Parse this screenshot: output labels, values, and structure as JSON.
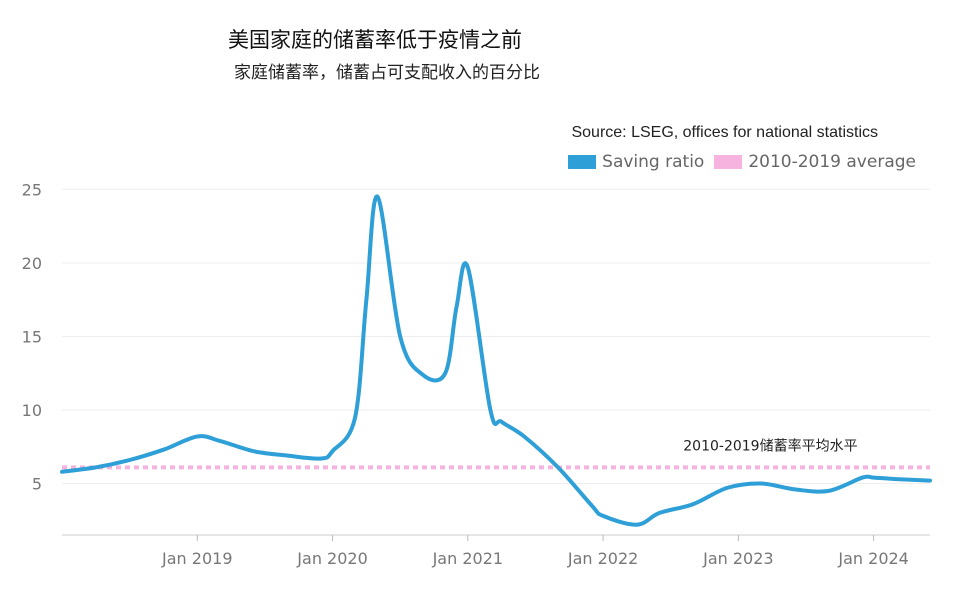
{
  "chart_data": {
    "type": "line",
    "title": "美国家庭的储蓄率低于疫情之前",
    "subtitle": "家庭储蓄率，储蓄占可支配收入的百分比",
    "source": "Source: LSEG, offices for national statistics",
    "xlabel": "",
    "ylabel": "",
    "x_ticks": [
      "Jan 2019",
      "Jan 2020",
      "Jan 2021",
      "Jan 2022",
      "Jan 2023",
      "Jan 2024"
    ],
    "y_ticks": [
      5,
      10,
      15,
      20,
      25
    ],
    "ylim": [
      1.5,
      27
    ],
    "xlim": [
      "2018-01",
      "2024-06"
    ],
    "grid": true,
    "legend_position": "top-right",
    "series": [
      {
        "name": "Saving ratio",
        "color": "#2f9fd8",
        "x": [
          "2018-01",
          "2018-04",
          "2018-07",
          "2018-10",
          "2019-01",
          "2019-03",
          "2019-06",
          "2019-09",
          "2019-12",
          "2020-01",
          "2020-03",
          "2020-04",
          "2020-05",
          "2020-07",
          "2020-09",
          "2020-11",
          "2020-12",
          "2021-01",
          "2021-03",
          "2021-04",
          "2021-06",
          "2021-09",
          "2021-12",
          "2022-01",
          "2022-04",
          "2022-06",
          "2022-09",
          "2022-12",
          "2023-03",
          "2023-06",
          "2023-09",
          "2023-12",
          "2024-01",
          "2024-03",
          "2024-06"
        ],
        "values": [
          5.8,
          6.1,
          6.6,
          7.3,
          8.2,
          7.9,
          7.2,
          6.9,
          6.7,
          7.2,
          9.5,
          17.5,
          24.5,
          15.0,
          12.4,
          12.5,
          17.0,
          19.7,
          10.0,
          9.2,
          8.2,
          6.1,
          3.5,
          2.8,
          2.2,
          3.0,
          3.6,
          4.7,
          5.0,
          4.6,
          4.5,
          5.4,
          5.4,
          5.3,
          5.2
        ]
      },
      {
        "name": "2010-2019 average",
        "color": "#f7b3e0",
        "style": "dashed",
        "x": [
          "2018-01",
          "2024-06"
        ],
        "values": [
          6.1,
          6.1
        ]
      }
    ],
    "annotations": [
      {
        "text": "2010-2019储蓄率平均水平",
        "x": "2022-09",
        "y": 6.1
      }
    ]
  }
}
